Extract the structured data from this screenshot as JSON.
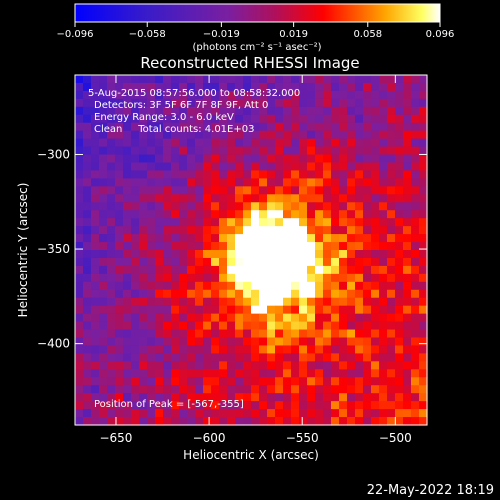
{
  "chart_data": {
    "type": "heatmap",
    "title": "Reconstructed RHESSI Image",
    "xlabel": "Heliocentric X (arcsec)",
    "ylabel": "Heliocentric Y (arcsec)",
    "xlim": [
      -672,
      -483
    ],
    "ylim": [
      -443,
      -258
    ],
    "x_ticks": [
      -650,
      -600,
      -550,
      -500
    ],
    "y_ticks": [
      -300,
      -350,
      -400
    ],
    "x_tick_labels": [
      "−650",
      "−600",
      "−550",
      "−500"
    ],
    "y_tick_labels": [
      "−300",
      "−350",
      "−400"
    ],
    "colorbar": {
      "range": [
        -0.096,
        0.096
      ],
      "ticks": [
        -0.096,
        -0.058,
        -0.019,
        0.019,
        0.058,
        0.096
      ],
      "tick_labels": [
        "−0.096",
        "−0.058",
        "−0.019",
        "0.019",
        "0.058",
        "0.096"
      ],
      "unit_label": "(photons cm⁻² s⁻¹ asec⁻²)"
    },
    "colors": {
      "cold": "#0000ff",
      "mid": "#8a2be2",
      "warm": "#ff0000",
      "hot": "#ffffff"
    },
    "peak": {
      "x": -567,
      "y": -355,
      "value": 0.096
    },
    "info_lines": [
      "5-Aug-2015 08:57:56.000 to 08:58:32.000",
      "Detectors: 3F 5F 6F 7F 8F 9F, Att 0",
      "Energy Range: 3.0 - 6.0 keV",
      "Clean     Total counts: 4.01E+03"
    ],
    "peak_label": "Position of Peak = [-567,-355]"
  },
  "footer": {
    "timestamp": "22-May-2022 18:19"
  }
}
